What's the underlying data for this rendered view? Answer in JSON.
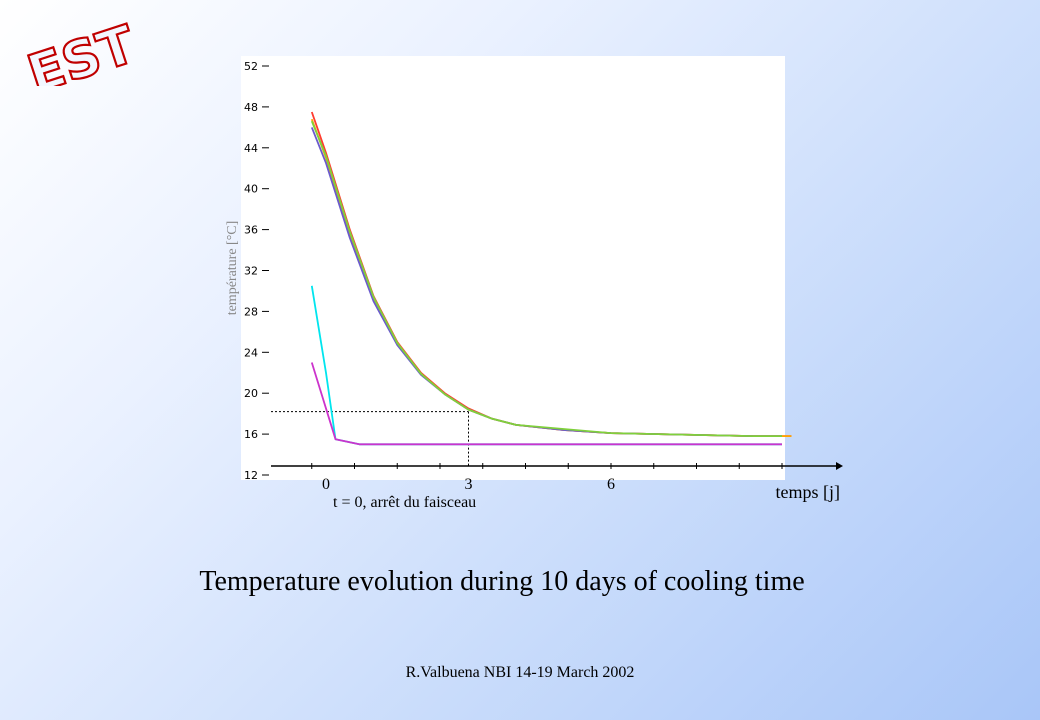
{
  "logo": {
    "text": "EST",
    "outline_color": "#c00000"
  },
  "caption": "Temperature evolution during 10 days of cooling time",
  "footer": "R.Valbuena NBI 14-19 March 2002",
  "chart_data": {
    "type": "line",
    "title": "",
    "xlabel": "temps [j]",
    "ylabel": "température [°C]",
    "annotation": "t = 0, arrêt du faisceau",
    "xlim": [
      -1.2,
      10.8
    ],
    "ylim": [
      12,
      52
    ],
    "yticks": [
      12,
      16,
      20,
      24,
      28,
      32,
      36,
      40,
      44,
      48,
      52
    ],
    "xticks": [
      0,
      3,
      6
    ],
    "reference": {
      "x": 3,
      "y": 18.2
    },
    "grid": false,
    "series": [
      {
        "color": "#ff3b2f",
        "x": [
          -0.3,
          0.0,
          0.5,
          1.0,
          1.5,
          2.0,
          2.5,
          3.0,
          3.5,
          4.0,
          5.0,
          6.0,
          7.0,
          8.0,
          9.0,
          9.8
        ],
        "y": [
          47.5,
          43.5,
          36.0,
          29.5,
          25.0,
          22.0,
          20.0,
          18.5,
          17.5,
          16.9,
          16.4,
          16.1,
          16.0,
          15.9,
          15.8,
          15.8
        ]
      },
      {
        "color": "#ffa500",
        "x": [
          -0.3,
          0.0,
          0.5,
          1.0,
          1.5,
          2.0,
          2.5,
          3.0,
          3.5,
          4.0,
          5.0,
          6.0,
          7.0,
          8.0,
          9.0,
          9.8
        ],
        "y": [
          46.8,
          43.0,
          35.6,
          29.3,
          24.9,
          21.9,
          19.9,
          18.4,
          17.5,
          16.9,
          16.4,
          16.1,
          16.0,
          15.9,
          15.8,
          15.8
        ]
      },
      {
        "color": "#6a5acd",
        "x": [
          -0.3,
          0.0,
          0.5,
          1.0,
          1.5,
          2.0,
          2.5,
          3.0,
          3.5,
          4.0,
          5.0,
          6.0,
          7.0,
          8.0,
          9.0,
          9.6
        ],
        "y": [
          46.0,
          42.5,
          35.2,
          29.0,
          24.7,
          21.8,
          19.9,
          18.4,
          17.5,
          16.9,
          16.4,
          16.1,
          16.0,
          15.9,
          15.8,
          15.8
        ]
      },
      {
        "color": "#7fd13b",
        "x": [
          -0.3,
          0.0,
          0.5,
          1.0,
          1.5,
          2.0,
          2.5,
          3.0,
          3.5,
          4.0,
          5.0,
          6.0,
          7.0,
          8.0,
          9.0,
          9.6
        ],
        "y": [
          46.6,
          43.2,
          35.8,
          29.4,
          24.9,
          21.9,
          19.9,
          18.4,
          17.5,
          16.9,
          16.5,
          16.1,
          16.0,
          15.9,
          15.8,
          15.8
        ]
      },
      {
        "color": "#00e5ee",
        "x": [
          -0.3,
          0.0,
          0.2,
          0.7,
          2.0,
          4.0,
          6.0,
          8.0,
          9.6
        ],
        "y": [
          30.5,
          22.0,
          15.5,
          15.0,
          15.0,
          15.0,
          15.0,
          15.0,
          15.0
        ]
      },
      {
        "color": "#cc33cc",
        "x": [
          -0.3,
          0.2,
          0.7,
          2.0,
          4.0,
          6.0,
          8.0,
          9.6
        ],
        "y": [
          23.0,
          15.5,
          15.0,
          15.0,
          15.0,
          15.0,
          15.0,
          15.0
        ]
      }
    ]
  }
}
